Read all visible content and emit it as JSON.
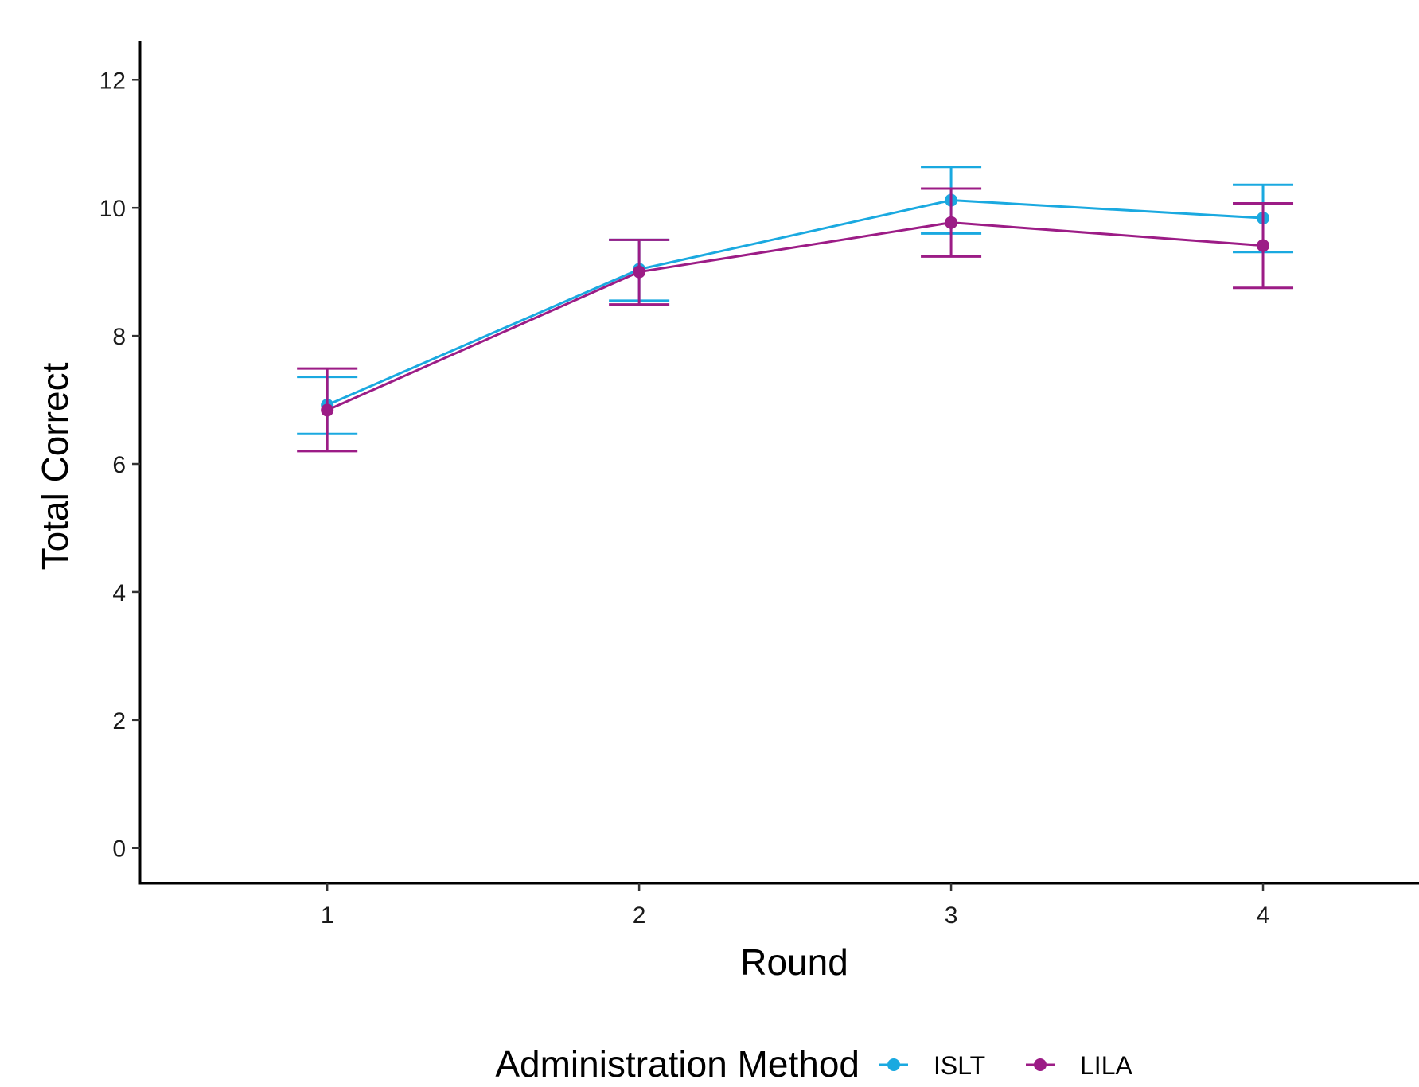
{
  "chart_data": {
    "type": "line",
    "title": "",
    "xlabel": "Round",
    "ylabel": "Total Correct",
    "categories": [
      1,
      2,
      3,
      4
    ],
    "x_tick_labels": [
      "1",
      "2",
      "3",
      "4"
    ],
    "xlim": [
      0.4,
      4.5
    ],
    "ylim": [
      -0.55,
      12.6
    ],
    "y_ticks": [
      0,
      2,
      4,
      6,
      8,
      10,
      12
    ],
    "y_tick_labels": [
      "0",
      "2",
      "4",
      "6",
      "8",
      "10",
      "12"
    ],
    "grid": false,
    "legend": {
      "title": "Administration Method",
      "placement": "bottom"
    },
    "series": [
      {
        "name": "ISLT",
        "color": "#1aa9e0",
        "values": [
          6.92,
          9.04,
          10.12,
          9.84
        ],
        "error_low": [
          6.47,
          8.55,
          9.6,
          9.31
        ],
        "error_high": [
          7.36,
          9.5,
          10.64,
          10.36
        ]
      },
      {
        "name": "LILA",
        "color": "#9c1c86",
        "values": [
          6.84,
          9.0,
          9.77,
          9.41
        ],
        "error_low": [
          6.2,
          8.49,
          9.24,
          8.75
        ],
        "error_high": [
          7.49,
          9.5,
          10.3,
          10.07
        ]
      }
    ]
  }
}
